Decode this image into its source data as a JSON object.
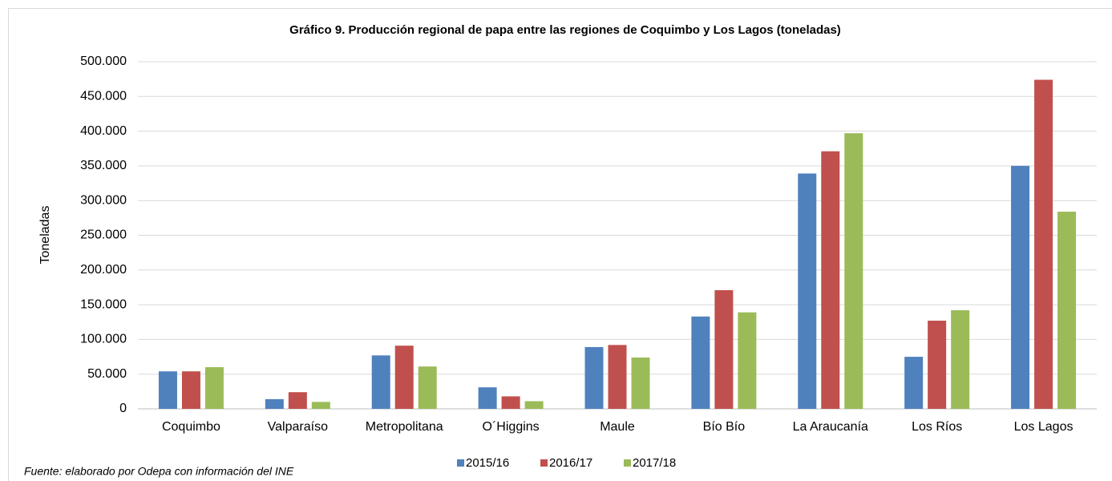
{
  "chart_data": {
    "type": "bar",
    "title": "Gráfico 9. Producción regional de papa entre las regiones de Coquimbo y Los Lagos (toneladas)",
    "y_label": "Toneladas",
    "note": "Fuente: elaborado por Odepa con información del INE",
    "categories": [
      "Coquimbo",
      "Valparaíso",
      "Metropolitana",
      "O´Higgins",
      "Maule",
      "Bío Bío",
      "La Araucanía",
      "Los Ríos",
      "Los Lagos"
    ],
    "series": [
      {
        "name": "2015/16",
        "color": "#4f81bd",
        "values": [
          54000,
          14000,
          77000,
          31000,
          89000,
          133000,
          339000,
          75000,
          350000
        ]
      },
      {
        "name": "2016/17",
        "color": "#c0504d",
        "values": [
          54000,
          24000,
          91000,
          18000,
          92000,
          171000,
          371000,
          127000,
          474000
        ]
      },
      {
        "name": "2017/18",
        "color": "#9bbb59",
        "values": [
          60000,
          10000,
          61000,
          11000,
          74000,
          139000,
          397000,
          142000,
          284000
        ]
      }
    ],
    "ylim": [
      0,
      500000
    ],
    "yticks": [
      0,
      {
        "value": 50000,
        "label": "50.000"
      },
      {
        "value": 100000,
        "label": "100.000"
      },
      {
        "value": 150000,
        "label": "150.000"
      },
      {
        "value": 200000,
        "label": "200.000"
      },
      {
        "value": 250000,
        "label": "250.000"
      },
      {
        "value": 300000,
        "label": "300.000"
      },
      {
        "value": 350000,
        "label": "350.000"
      },
      {
        "value": 400000,
        "label": "400.000"
      },
      {
        "value": 450000,
        "label": "450.000"
      },
      {
        "value": 500000,
        "label": "500.000"
      }
    ],
    "grid": true,
    "legend": "bottom"
  }
}
